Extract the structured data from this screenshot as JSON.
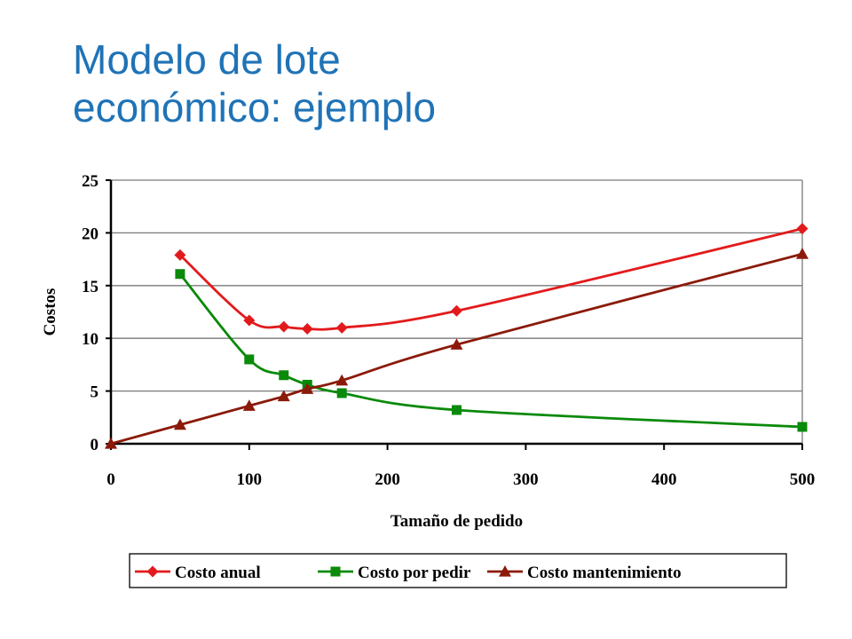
{
  "slide": {
    "title_line1": "Modelo de lote",
    "title_line2": "económico: ejemplo"
  },
  "chart_data": {
    "type": "line",
    "title": "",
    "xlabel": "Tamaño de pedido",
    "ylabel": "Costos",
    "xlim": [
      0,
      500
    ],
    "ylim": [
      0,
      25
    ],
    "xticks": [
      0,
      100,
      200,
      300,
      400,
      500
    ],
    "yticks": [
      0,
      5,
      10,
      15,
      20,
      25
    ],
    "grid": "horizontal",
    "legend": "bottom",
    "series": [
      {
        "name": "Costo anual",
        "color": "#e31a1c",
        "marker": "diamond",
        "x": [
          50,
          100,
          125,
          142,
          167,
          250,
          500
        ],
        "y": [
          17.9,
          11.7,
          11.1,
          10.9,
          11.0,
          12.6,
          20.4
        ]
      },
      {
        "name": "Costo por pedir",
        "color": "#0a8a0a",
        "marker": "square",
        "x": [
          50,
          100,
          125,
          142,
          167,
          250,
          500
        ],
        "y": [
          16.1,
          8.0,
          6.5,
          5.6,
          4.8,
          3.2,
          1.6
        ]
      },
      {
        "name": "Costo mantenimiento",
        "color": "#8b1a0a",
        "marker": "triangle",
        "x": [
          0,
          50,
          100,
          125,
          142,
          167,
          250,
          500
        ],
        "y": [
          0,
          1.8,
          3.6,
          4.5,
          5.2,
          6.0,
          9.4,
          18.0
        ]
      }
    ]
  }
}
